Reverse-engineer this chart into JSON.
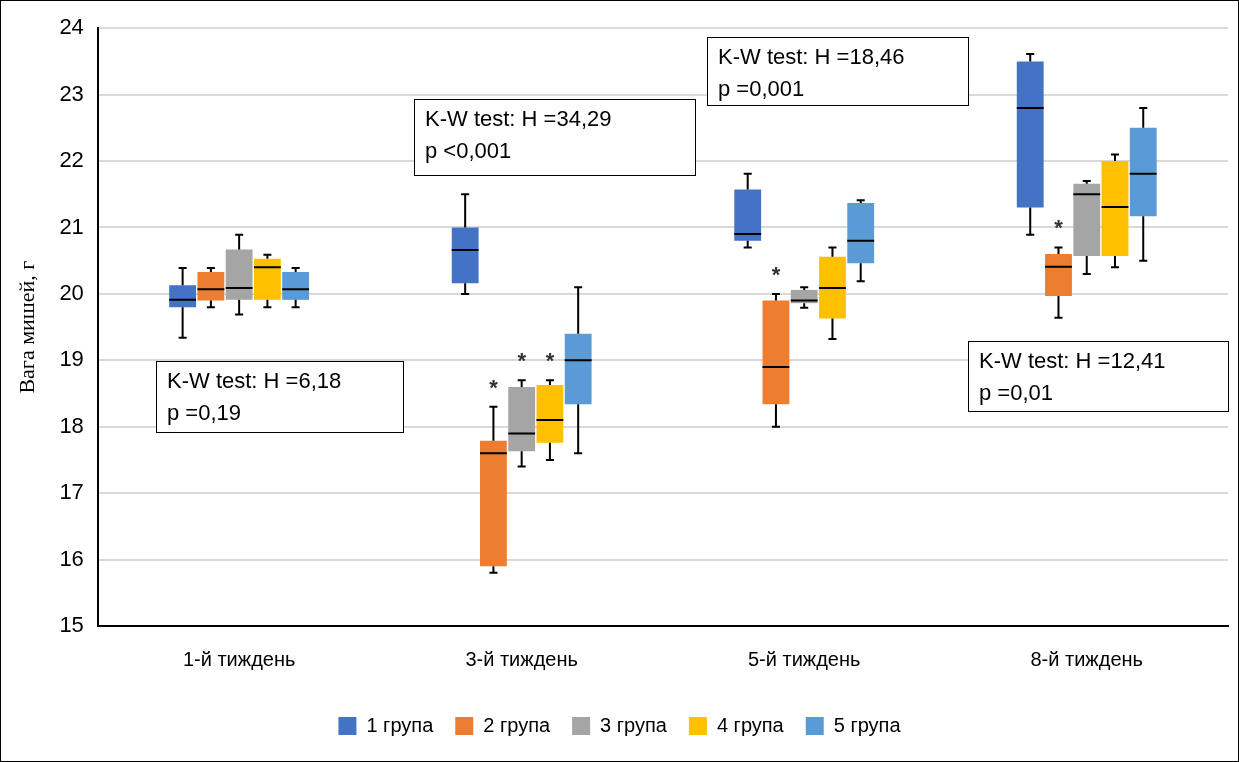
{
  "chart_data": {
    "type": "box",
    "ylabel": "Вага мишей, г",
    "categories": [
      "1-й тиждень",
      "3-й тиждень",
      "5-й тиждень",
      "8-й тиждень"
    ],
    "ylim": [
      15,
      24
    ],
    "yticks": [
      15,
      16,
      17,
      18,
      19,
      20,
      21,
      22,
      23,
      24
    ],
    "grid": "y",
    "legend": "bottom",
    "series": [
      {
        "name": "1 група",
        "color": "#4472c4",
        "boxes": [
          {
            "low": 19.34,
            "q1": 19.8,
            "median": 19.91,
            "q3": 20.13,
            "high": 20.39
          },
          {
            "low": 20.0,
            "q1": 20.16,
            "median": 20.66,
            "q3": 21.0,
            "high": 21.5
          },
          {
            "low": 20.7,
            "q1": 20.8,
            "median": 20.9,
            "q3": 21.57,
            "high": 21.81
          },
          {
            "low": 20.89,
            "q1": 21.3,
            "median": 22.8,
            "q3": 23.5,
            "high": 23.61
          }
        ]
      },
      {
        "name": "2 група",
        "color": "#ed7d31",
        "boxes": [
          {
            "low": 19.8,
            "q1": 19.9,
            "median": 20.07,
            "q3": 20.33,
            "high": 20.39
          },
          {
            "low": 15.8,
            "q1": 15.9,
            "median": 17.6,
            "q3": 17.79,
            "high": 18.3
          },
          {
            "low": 18.0,
            "q1": 18.34,
            "median": 18.9,
            "q3": 19.9,
            "high": 20.0
          },
          {
            "low": 19.64,
            "q1": 19.97,
            "median": 20.41,
            "q3": 20.6,
            "high": 20.7
          }
        ]
      },
      {
        "name": "3 група",
        "color": "#a5a5a5",
        "boxes": [
          {
            "low": 19.69,
            "q1": 19.91,
            "median": 20.09,
            "q3": 20.67,
            "high": 20.89
          },
          {
            "low": 17.4,
            "q1": 17.63,
            "median": 17.9,
            "q3": 18.6,
            "high": 18.7
          },
          {
            "low": 19.79,
            "q1": 19.86,
            "median": 19.9,
            "q3": 20.06,
            "high": 20.1
          },
          {
            "low": 20.3,
            "q1": 20.57,
            "median": 21.5,
            "q3": 21.66,
            "high": 21.7
          }
        ]
      },
      {
        "name": "4 група",
        "color": "#ffc000",
        "boxes": [
          {
            "low": 19.8,
            "q1": 19.91,
            "median": 20.4,
            "q3": 20.53,
            "high": 20.59
          },
          {
            "low": 17.5,
            "q1": 17.76,
            "median": 18.1,
            "q3": 18.63,
            "high": 18.7
          },
          {
            "low": 19.32,
            "q1": 19.63,
            "median": 20.09,
            "q3": 20.56,
            "high": 20.7
          },
          {
            "low": 20.4,
            "q1": 20.57,
            "median": 21.31,
            "q3": 22.0,
            "high": 22.1
          }
        ]
      },
      {
        "name": "5 група",
        "color": "#5b9bd5",
        "boxes": [
          {
            "low": 19.8,
            "q1": 19.91,
            "median": 20.07,
            "q3": 20.33,
            "high": 20.39
          },
          {
            "low": 17.6,
            "q1": 18.34,
            "median": 19.0,
            "q3": 19.4,
            "high": 20.1
          },
          {
            "low": 20.19,
            "q1": 20.46,
            "median": 20.8,
            "q3": 21.37,
            "high": 21.41
          },
          {
            "low": 20.5,
            "q1": 21.17,
            "median": 21.81,
            "q3": 22.5,
            "high": 22.8
          }
        ]
      }
    ],
    "annotations": [
      "K-W test: H =6,18\np =0,19",
      "K-W test: H =34,29\np <0,001",
      "K-W test: H =18,46\np =0,001",
      "K-W test: H =12,41\np =0,01",
      "*",
      "*",
      "*",
      "*",
      "*"
    ]
  }
}
